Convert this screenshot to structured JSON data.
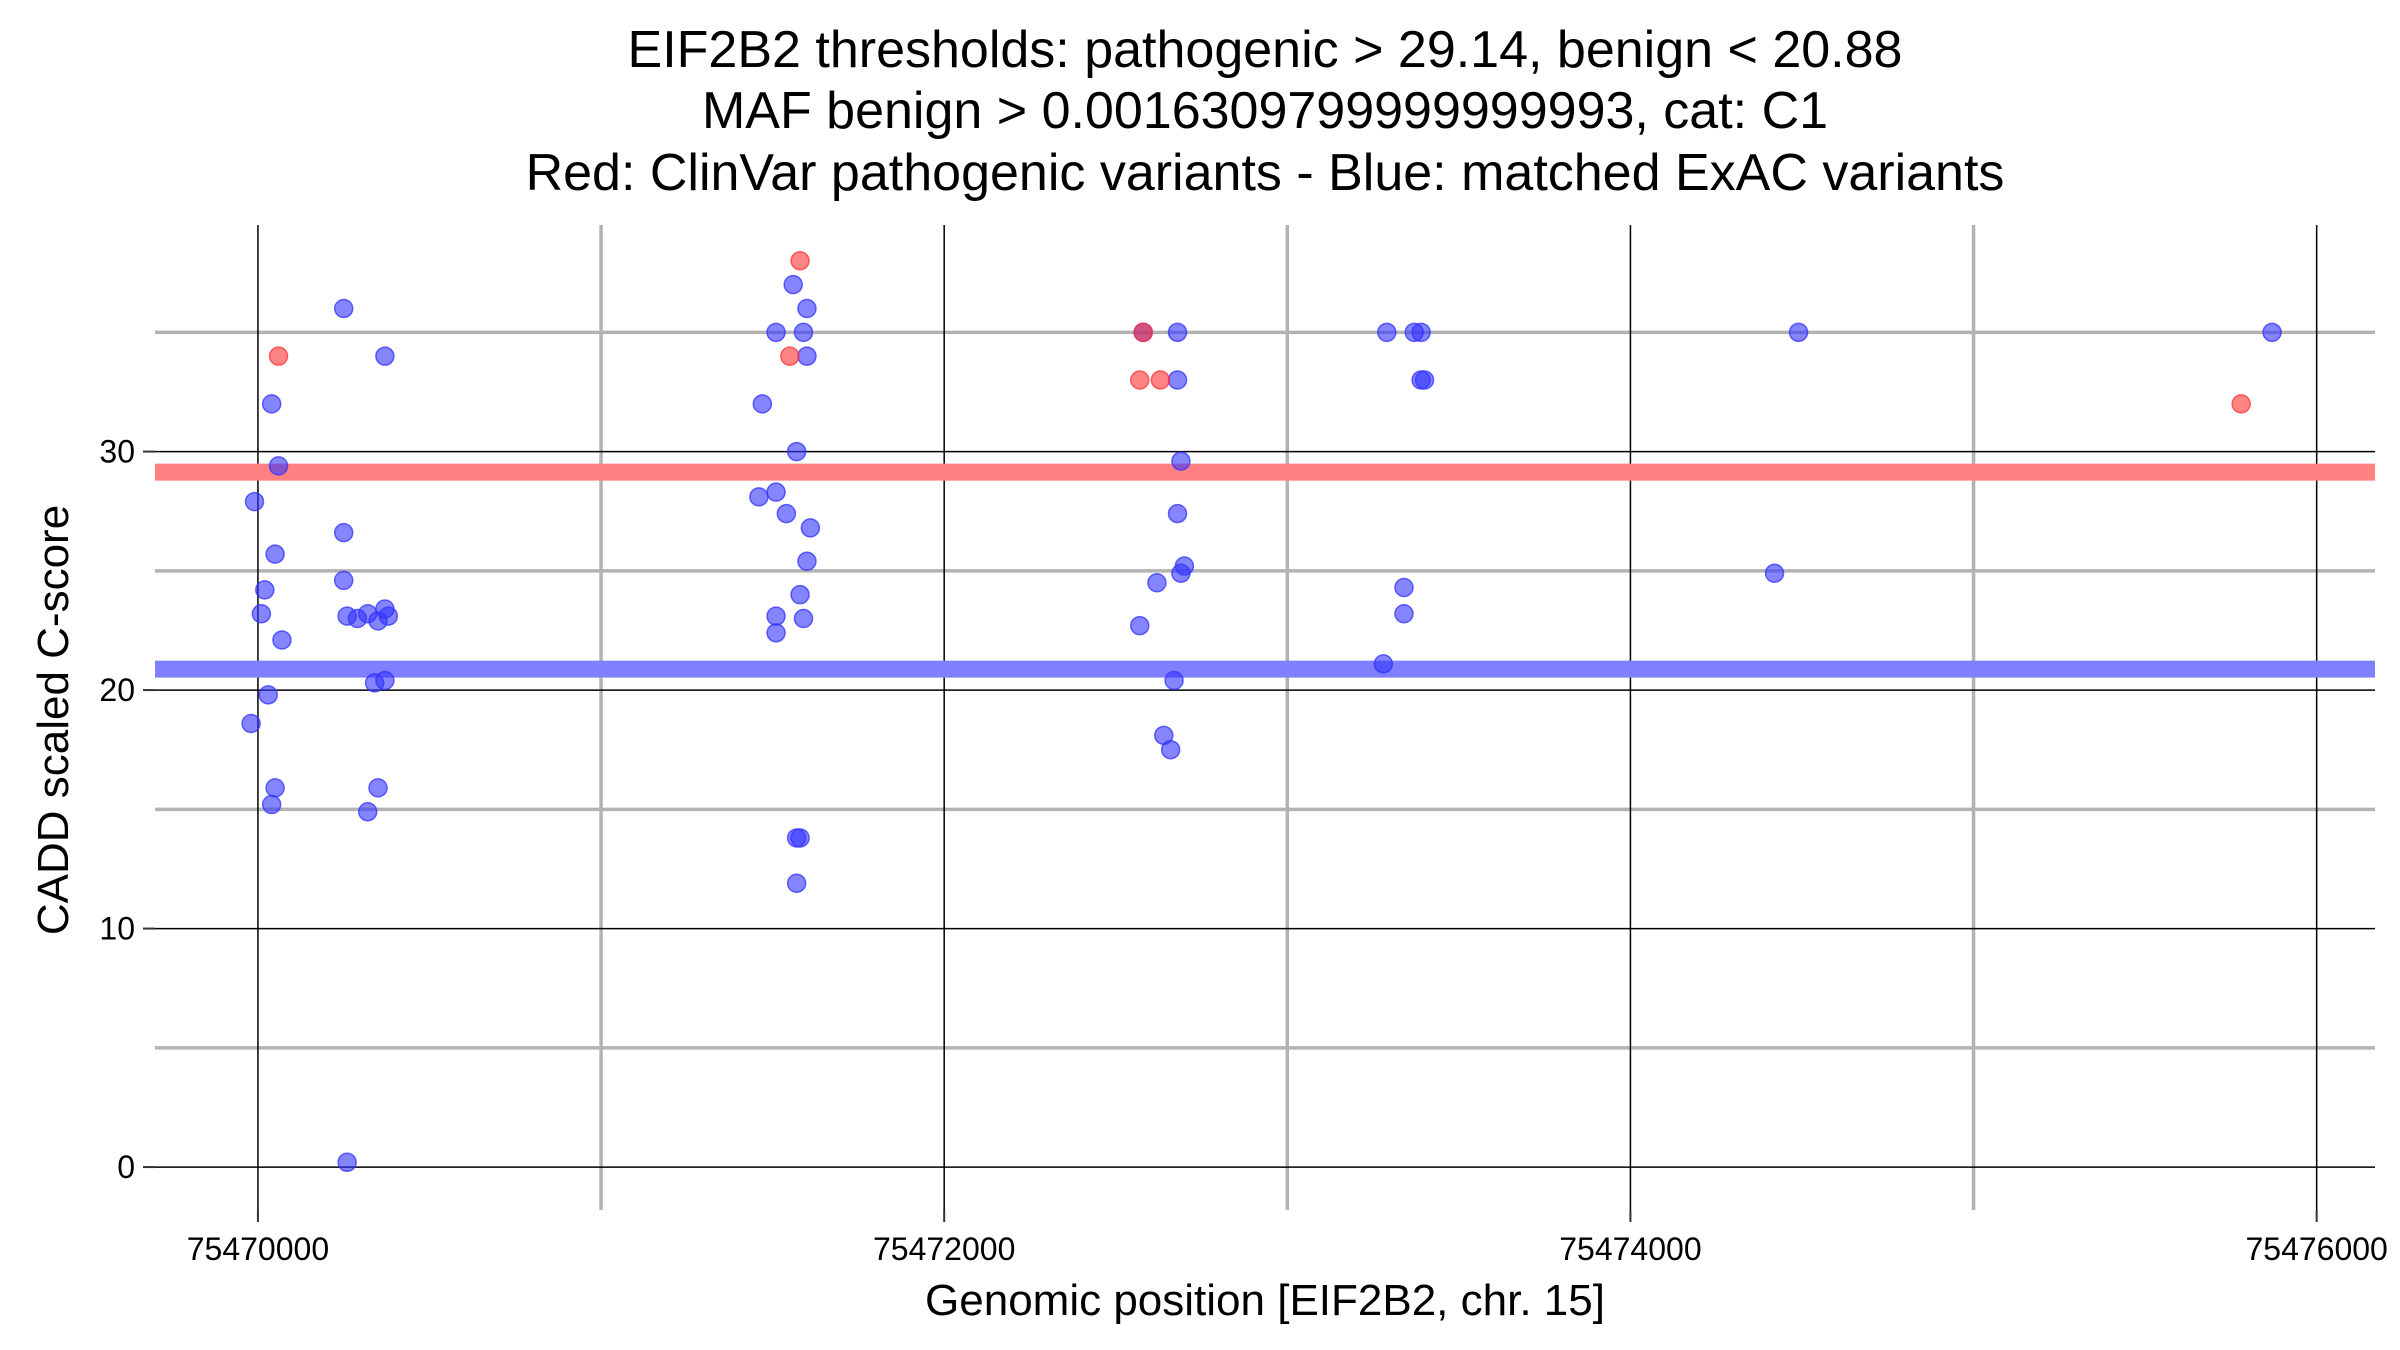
{
  "chart_data": {
    "type": "scatter",
    "title": [
      "EIF2B2 thresholds: pathogenic > 29.14, benign < 20.88",
      "MAF benign > 0.0016309799999999993, cat: C1",
      "Red: ClinVar pathogenic variants - Blue: matched ExAC variants"
    ],
    "xlabel": "Genomic position [EIF2B2, chr. 15]",
    "ylabel": "CADD scaled C-score",
    "xlim": [
      75469700,
      75476170
    ],
    "ylim": [
      -1.8,
      39.5
    ],
    "x_ticks": [
      75470000,
      75472000,
      75474000,
      75476000
    ],
    "x_tick_labels": [
      "75470000",
      "75472000",
      "75474000",
      "75476000"
    ],
    "x_minor_grid": [
      75471000,
      75473000,
      75475000
    ],
    "y_ticks": [
      0,
      10,
      20,
      30
    ],
    "y_tick_labels": [
      "0",
      "10",
      "20",
      "30"
    ],
    "y_minor_grid": [
      5,
      15,
      25,
      35
    ],
    "grid": true,
    "thresholds": [
      {
        "label": "pathogenic",
        "y": 29.14,
        "color": "#ff8080"
      },
      {
        "label": "benign",
        "y": 20.88,
        "color": "#8080ff"
      }
    ],
    "series": [
      {
        "name": "ClinVar pathogenic variants",
        "color": "#ff3333",
        "points": [
          [
            75470060,
            34
          ],
          [
            75471580,
            38
          ],
          [
            75471550,
            34
          ],
          [
            75472580,
            35
          ],
          [
            75472570,
            33
          ],
          [
            75472630,
            33
          ],
          [
            75475780,
            32
          ]
        ]
      },
      {
        "name": "matched ExAC variants",
        "color": "#3333ff",
        "points": [
          [
            75470250,
            36
          ],
          [
            75470370,
            34
          ],
          [
            75470040,
            32
          ],
          [
            75470060,
            29.4
          ],
          [
            75469990,
            27.9
          ],
          [
            75470250,
            26.6
          ],
          [
            75470050,
            25.7
          ],
          [
            75470020,
            24.2
          ],
          [
            75470250,
            24.6
          ],
          [
            75470010,
            23.2
          ],
          [
            75470260,
            23.1
          ],
          [
            75470290,
            23.0
          ],
          [
            75470320,
            23.2
          ],
          [
            75470350,
            22.9
          ],
          [
            75470370,
            23.4
          ],
          [
            75470380,
            23.1
          ],
          [
            75470070,
            22.1
          ],
          [
            75470030,
            19.8
          ],
          [
            75470340,
            20.3
          ],
          [
            75470370,
            20.4
          ],
          [
            75469980,
            18.6
          ],
          [
            75470050,
            15.9
          ],
          [
            75470040,
            15.2
          ],
          [
            75470350,
            15.9
          ],
          [
            75470320,
            14.9
          ],
          [
            75470260,
            0.2
          ],
          [
            75471560,
            37
          ],
          [
            75471600,
            36
          ],
          [
            75471510,
            35
          ],
          [
            75471590,
            35
          ],
          [
            75471600,
            34
          ],
          [
            75471470,
            32
          ],
          [
            75471570,
            30
          ],
          [
            75471460,
            28.1
          ],
          [
            75471510,
            28.3
          ],
          [
            75471540,
            27.4
          ],
          [
            75471610,
            26.8
          ],
          [
            75471600,
            25.4
          ],
          [
            75471580,
            24.0
          ],
          [
            75471510,
            23.1
          ],
          [
            75471590,
            23.0
          ],
          [
            75471510,
            22.4
          ],
          [
            75471570,
            13.8
          ],
          [
            75471580,
            13.8
          ],
          [
            75471570,
            11.9
          ],
          [
            75472580,
            35
          ],
          [
            75472680,
            35
          ],
          [
            75472680,
            33
          ],
          [
            75472690,
            29.6
          ],
          [
            75472680,
            27.4
          ],
          [
            75472700,
            25.2
          ],
          [
            75472690,
            24.9
          ],
          [
            75472620,
            24.5
          ],
          [
            75472570,
            22.7
          ],
          [
            75472670,
            20.4
          ],
          [
            75472640,
            18.1
          ],
          [
            75472660,
            17.5
          ],
          [
            75473290,
            35
          ],
          [
            75473370,
            35
          ],
          [
            75473390,
            35
          ],
          [
            75473390,
            33
          ],
          [
            75473400,
            33
          ],
          [
            75473340,
            24.3
          ],
          [
            75473340,
            23.2
          ],
          [
            75473280,
            21.1
          ],
          [
            75474490,
            35
          ],
          [
            75474420,
            24.9
          ],
          [
            75475870,
            35
          ]
        ]
      }
    ]
  }
}
